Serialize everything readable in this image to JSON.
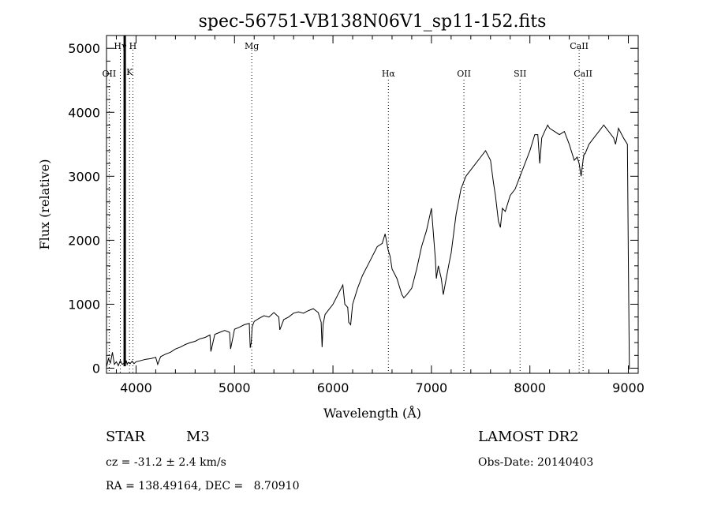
{
  "chart_data": {
    "type": "line",
    "title": "spec-56751-VB138N06V1_sp11-152.fits",
    "xlabel": "Wavelength (Å)",
    "ylabel": "Flux (relative)",
    "xlim": [
      3700,
      9100
    ],
    "ylim": [
      -80,
      5200
    ],
    "x_ticks": [
      4000,
      5000,
      6000,
      7000,
      8000,
      9000
    ],
    "y_ticks": [
      0,
      1000,
      2000,
      3000,
      4000,
      5000
    ],
    "grid": false,
    "series": [
      {
        "x": [
          3700,
          3720,
          3740,
          3760,
          3780,
          3800,
          3820,
          3840,
          3860,
          3880,
          3890,
          3900,
          3910,
          3920,
          3940,
          3960,
          3980,
          4000,
          4050,
          4100,
          4150,
          4200,
          4220,
          4250,
          4300,
          4350,
          4400,
          4450,
          4500,
          4550,
          4600,
          4650,
          4700,
          4750,
          4760,
          4800,
          4850,
          4900,
          4950,
          4960,
          5000,
          5050,
          5100,
          5150,
          5160,
          5170,
          5180,
          5200,
          5250,
          5300,
          5350,
          5400,
          5450,
          5460,
          5500,
          5550,
          5600,
          5650,
          5700,
          5750,
          5800,
          5850,
          5880,
          5890,
          5900,
          5920,
          5950,
          6000,
          6050,
          6100,
          6120,
          6150,
          6160,
          6180,
          6200,
          6250,
          6300,
          6350,
          6400,
          6450,
          6500,
          6530,
          6560,
          6580,
          6600,
          6650,
          6700,
          6720,
          6750,
          6800,
          6850,
          6900,
          6950,
          7000,
          7040,
          7050,
          7070,
          7100,
          7120,
          7150,
          7180,
          7200,
          7250,
          7300,
          7350,
          7400,
          7450,
          7500,
          7550,
          7600,
          7630,
          7650,
          7680,
          7700,
          7720,
          7750,
          7800,
          7850,
          7900,
          7950,
          8000,
          8050,
          8080,
          8100,
          8120,
          8150,
          8180,
          8200,
          8250,
          8300,
          8350,
          8400,
          8450,
          8480,
          8500,
          8520,
          8540,
          8550,
          8560,
          8600,
          8650,
          8700,
          8750,
          8800,
          8850,
          8870,
          8900,
          8950,
          8990,
          9000,
          9010
        ],
        "values": [
          20,
          150,
          80,
          250,
          60,
          100,
          40,
          120,
          60,
          80,
          50,
          120,
          60,
          90,
          70,
          110,
          70,
          100,
          120,
          140,
          150,
          170,
          60,
          180,
          220,
          250,
          300,
          330,
          370,
          400,
          420,
          460,
          480,
          520,
          260,
          530,
          560,
          590,
          560,
          300,
          610,
          640,
          680,
          700,
          320,
          400,
          650,
          730,
          780,
          820,
          800,
          870,
          800,
          600,
          760,
          800,
          860,
          880,
          860,
          900,
          930,
          870,
          720,
          330,
          690,
          840,
          900,
          1000,
          1150,
          1300,
          1000,
          950,
          720,
          680,
          1000,
          1250,
          1450,
          1600,
          1750,
          1900,
          1950,
          2100,
          1850,
          1750,
          1550,
          1400,
          1150,
          1100,
          1150,
          1250,
          1550,
          1900,
          2150,
          2500,
          1700,
          1400,
          1600,
          1400,
          1150,
          1400,
          1650,
          1800,
          2400,
          2800,
          3000,
          3100,
          3200,
          3300,
          3400,
          3250,
          2900,
          2700,
          2300,
          2200,
          2500,
          2450,
          2700,
          2800,
          3000,
          3200,
          3400,
          3650,
          3650,
          3200,
          3600,
          3700,
          3800,
          3750,
          3700,
          3650,
          3700,
          3500,
          3250,
          3300,
          3200,
          3000,
          3250,
          3350,
          3350,
          3500,
          3600,
          3700,
          3800,
          3700,
          3600,
          3500,
          3750,
          3600,
          3500,
          1700,
          -20
        ]
      }
    ],
    "spikes": [
      {
        "x": 3885,
        "low": 30,
        "high": 5200
      }
    ],
    "lines_top": [
      {
        "label": "Hγ",
        "x": 3840
      },
      {
        "label": "H",
        "x": 3968
      },
      {
        "label": "Mg",
        "x": 5175
      },
      {
        "label": "CaII",
        "x": 8500
      }
    ],
    "lines_bottom": [
      {
        "label": "OII",
        "x": 3727
      },
      {
        "label": "K",
        "x": 3934
      },
      {
        "label": "Hα",
        "x": 6563
      },
      {
        "label": "OII",
        "x": 7330
      },
      {
        "label": "SII",
        "x": 7900
      },
      {
        "label": "CaII",
        "x": 8540
      }
    ]
  },
  "info": {
    "class_label": "STAR",
    "subclass": "M3",
    "survey": "LAMOST DR2",
    "cz": "cz = -31.2 ± 2.4 km/s",
    "obs_date": "Obs-Date: 20140403",
    "radec": "RA = 138.49164, DEC =   8.70910"
  }
}
